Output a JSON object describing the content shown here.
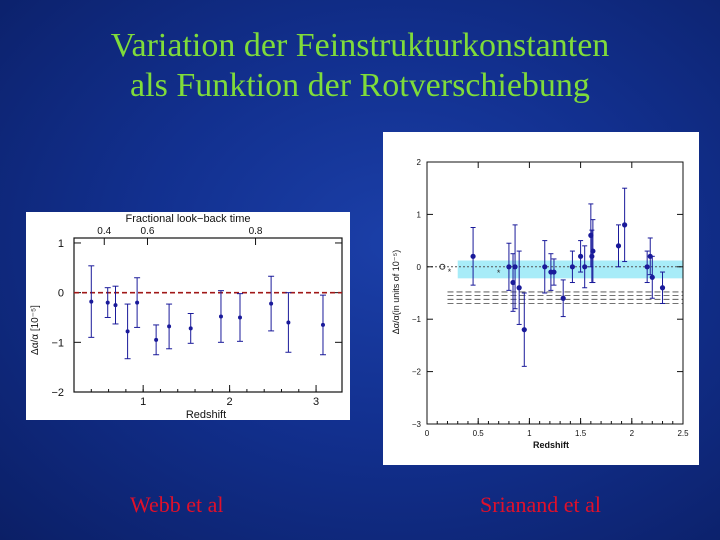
{
  "title": {
    "line1": "Variation der Feinstrukturkonstanten",
    "line2": "als Funktion der Rotverschiebung"
  },
  "captions": {
    "left": "Webb et al",
    "right": "Srianand et al"
  },
  "colors": {
    "background": "#12308f",
    "title": "#7fdc3a",
    "caption": "#e0102a",
    "points": "#1a1a9a",
    "zero_line_left": "#a01818",
    "band_right": "#a8ecf8"
  },
  "chart_data": [
    {
      "type": "scatter",
      "title": "",
      "xlabel": "Redshift",
      "ylabel": "Δα/α [10⁻⁵]",
      "top_axis_label": "Fractional look−back time",
      "top_ticks": [
        "0.4",
        "0.6",
        "0.8"
      ],
      "xlim": [
        0.2,
        3.3
      ],
      "ylim": [
        -2.0,
        1.1
      ],
      "xticks": [
        "1",
        "2",
        "3"
      ],
      "yticks": [
        "1",
        "0",
        "−1",
        "−2"
      ],
      "reference_line": 0,
      "points": [
        {
          "x": 0.4,
          "y": -0.18,
          "err": 0.72
        },
        {
          "x": 0.59,
          "y": -0.2,
          "err": 0.3
        },
        {
          "x": 0.68,
          "y": -0.25,
          "err": 0.38
        },
        {
          "x": 0.82,
          "y": -0.78,
          "err": 0.55
        },
        {
          "x": 0.93,
          "y": -0.2,
          "err": 0.5
        },
        {
          "x": 1.15,
          "y": -0.95,
          "err": 0.3
        },
        {
          "x": 1.3,
          "y": -0.68,
          "err": 0.45
        },
        {
          "x": 1.55,
          "y": -0.72,
          "err": 0.3
        },
        {
          "x": 1.9,
          "y": -0.48,
          "err": 0.52
        },
        {
          "x": 2.12,
          "y": -0.5,
          "err": 0.48
        },
        {
          "x": 2.48,
          "y": -0.22,
          "err": 0.55
        },
        {
          "x": 2.68,
          "y": -0.6,
          "err": 0.6
        },
        {
          "x": 3.08,
          "y": -0.65,
          "err": 0.6
        }
      ]
    },
    {
      "type": "scatter",
      "title": "",
      "xlabel": "Redshift",
      "ylabel": "Δα/α(in units of 10⁻⁵)",
      "xlim": [
        0,
        2.5
      ],
      "ylim": [
        -3,
        2
      ],
      "xticks": [
        "0",
        "0.5",
        "1",
        "1.5",
        "2",
        "2.5"
      ],
      "yticks": [
        "2",
        "1",
        "0",
        "−1",
        "−2",
        "−3"
      ],
      "band": {
        "from": -0.22,
        "to": 0.12
      },
      "dashed_lines": [
        -0.48,
        -0.55,
        -0.62,
        -0.7
      ],
      "open_marker": {
        "x": 0.15,
        "y": 0.0
      },
      "star_markers": [
        {
          "x": 0.22,
          "y": -0.08
        },
        {
          "x": 0.7,
          "y": -0.1
        }
      ],
      "points": [
        {
          "x": 0.45,
          "y": 0.2,
          "err": 0.55
        },
        {
          "x": 0.8,
          "y": 0.0,
          "err": 0.45
        },
        {
          "x": 0.84,
          "y": -0.3,
          "err": 0.55
        },
        {
          "x": 0.86,
          "y": 0.0,
          "err": 0.8
        },
        {
          "x": 0.9,
          "y": -0.4,
          "err": 0.7
        },
        {
          "x": 0.95,
          "y": -1.2,
          "err": 0.7
        },
        {
          "x": 1.15,
          "y": 0.0,
          "err": 0.5
        },
        {
          "x": 1.21,
          "y": -0.1,
          "err": 0.35
        },
        {
          "x": 1.24,
          "y": -0.1,
          "err": 0.25
        },
        {
          "x": 1.33,
          "y": -0.6,
          "err": 0.35
        },
        {
          "x": 1.42,
          "y": 0.0,
          "err": 0.3
        },
        {
          "x": 1.5,
          "y": 0.2,
          "err": 0.3
        },
        {
          "x": 1.54,
          "y": 0.0,
          "err": 0.4
        },
        {
          "x": 1.6,
          "y": 0.6,
          "err": 0.6
        },
        {
          "x": 1.61,
          "y": 0.2,
          "err": 0.5
        },
        {
          "x": 1.62,
          "y": 0.3,
          "err": 0.6
        },
        {
          "x": 1.87,
          "y": 0.4,
          "err": 0.4
        },
        {
          "x": 1.93,
          "y": 0.8,
          "err": 0.7
        },
        {
          "x": 2.15,
          "y": 0.0,
          "err": 0.3
        },
        {
          "x": 2.18,
          "y": 0.2,
          "err": 0.35
        },
        {
          "x": 2.2,
          "y": -0.2,
          "err": 0.4
        },
        {
          "x": 2.3,
          "y": -0.4,
          "err": 0.3
        }
      ]
    }
  ]
}
